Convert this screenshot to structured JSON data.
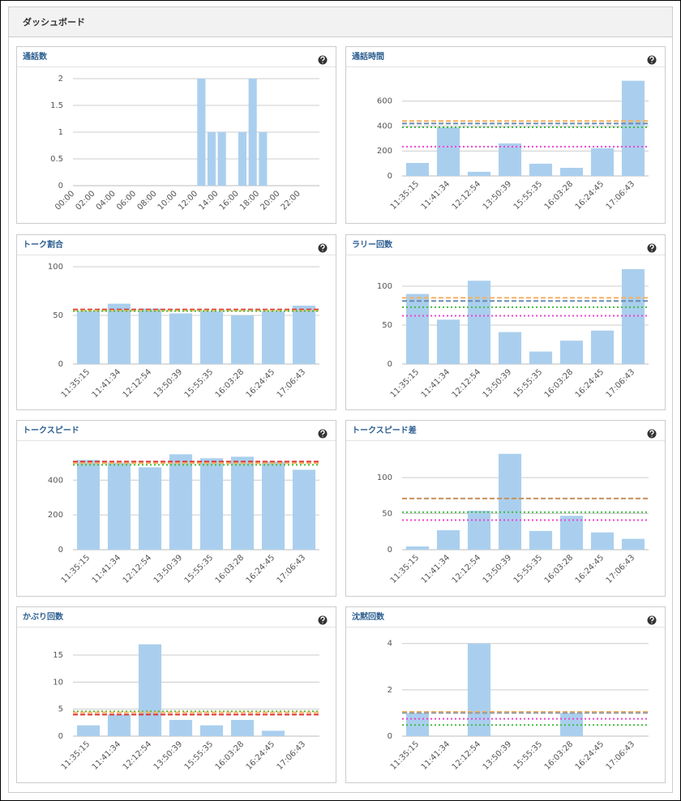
{
  "header": {
    "title": "ダッシュボード"
  },
  "chart_data": [
    {
      "type": "bar",
      "title": "通話数",
      "color": "#aacfee",
      "categories": [
        "00:00",
        null,
        "02:00",
        null,
        "04:00",
        null,
        "06:00",
        null,
        "08:00",
        null,
        "10:00",
        null,
        "12:00",
        null,
        "14:00",
        null,
        "16:00",
        null,
        "18:00",
        null,
        "20:00",
        null,
        "22:00",
        null
      ],
      "values": [
        0,
        0,
        0,
        0,
        0,
        0,
        0,
        0,
        0,
        0,
        0,
        0,
        2,
        1,
        1,
        0,
        1,
        2,
        1,
        0,
        0,
        0,
        0,
        0
      ],
      "ylim": [
        0,
        2
      ],
      "yticks": [
        0,
        0.5,
        1,
        1.5,
        2
      ],
      "grid": true,
      "reference_lines": []
    },
    {
      "type": "bar",
      "title": "通話時間",
      "color": "#aacfee",
      "categories": [
        "11:35:15",
        "11:41:34",
        "12:12:54",
        "13:50:39",
        "15:55:35",
        "16:03:28",
        "16:24:45",
        "17:06:43"
      ],
      "values": [
        104,
        390,
        33,
        261,
        98,
        65,
        222,
        763
      ],
      "ylim": [
        0,
        780
      ],
      "yticks": [
        0,
        200,
        400,
        600
      ],
      "grid": true,
      "reference_lines": [
        {
          "value": 440,
          "color": "#f5b060",
          "style": "dashed"
        },
        {
          "value": 420,
          "color": "#6a8caf",
          "style": "dashed"
        },
        {
          "value": 390,
          "color": "#44bb44",
          "style": "dotted"
        },
        {
          "value": 235,
          "color": "#ee44cc",
          "style": "dotted"
        }
      ]
    },
    {
      "type": "bar",
      "title": "トーク割合",
      "color": "#aacfee",
      "categories": [
        "11:35:15",
        "11:41:34",
        "12:12:54",
        "13:50:39",
        "15:55:35",
        "16:03:28",
        "16:24:45",
        "17:06:43"
      ],
      "values": [
        54,
        62,
        57,
        52,
        54,
        50,
        54,
        60
      ],
      "ylim": [
        0,
        100
      ],
      "yticks": [
        0,
        50,
        100
      ],
      "grid": true,
      "reference_lines": [
        {
          "value": 56,
          "color": "#dd3333",
          "style": "dashed"
        },
        {
          "value": 55,
          "color": "#f5b060",
          "style": "dashed"
        },
        {
          "value": 54.5,
          "color": "#44bb44",
          "style": "dotted"
        }
      ]
    },
    {
      "type": "bar",
      "title": "ラリー回数",
      "color": "#aacfee",
      "categories": [
        "11:35:15",
        "11:41:34",
        "12:12:54",
        "13:50:39",
        "15:55:35",
        "16:03:28",
        "16:24:45",
        "17:06:43"
      ],
      "values": [
        90,
        57,
        107,
        41,
        16,
        30,
        43,
        122
      ],
      "ylim": [
        0,
        125
      ],
      "yticks": [
        0,
        50,
        100
      ],
      "grid": true,
      "reference_lines": [
        {
          "value": 85,
          "color": "#f5b060",
          "style": "dashed"
        },
        {
          "value": 81,
          "color": "#6a8caf",
          "style": "dashed"
        },
        {
          "value": 73,
          "color": "#44bb44",
          "style": "dotted"
        },
        {
          "value": 62,
          "color": "#ee44cc",
          "style": "dotted"
        }
      ]
    },
    {
      "type": "bar",
      "title": "トークスピード",
      "color": "#aacfee",
      "categories": [
        "11:35:15",
        "11:41:34",
        "12:12:54",
        "13:50:39",
        "15:55:35",
        "16:03:28",
        "16:24:45",
        "17:06:43"
      ],
      "values": [
        516,
        502,
        474,
        549,
        526,
        535,
        507,
        460
      ],
      "ylim": [
        0,
        560
      ],
      "yticks": [
        0,
        200,
        400
      ],
      "grid": true,
      "reference_lines": [
        {
          "value": 507,
          "color": "#dd3333",
          "style": "dashed"
        },
        {
          "value": 498,
          "color": "#f5b060",
          "style": "dashed"
        },
        {
          "value": 488,
          "color": "#44bb44",
          "style": "dotted"
        }
      ]
    },
    {
      "type": "bar",
      "title": "トークスピード差",
      "color": "#aacfee",
      "categories": [
        "11:35:15",
        "11:41:34",
        "12:12:54",
        "13:50:39",
        "15:55:35",
        "16:03:28",
        "16:24:45",
        "17:06:43"
      ],
      "values": [
        4.5,
        27,
        54,
        133,
        26,
        47,
        24,
        15
      ],
      "ylim": [
        0,
        135
      ],
      "yticks": [
        0,
        50,
        100
      ],
      "grid": true,
      "reference_lines": [
        {
          "value": 71,
          "color": "#c8905a",
          "style": "dashed"
        },
        {
          "value": 52,
          "color": "#44bb44",
          "style": "dotted"
        },
        {
          "value": 41,
          "color": "#ee44cc",
          "style": "dotted"
        }
      ]
    },
    {
      "type": "bar",
      "title": "かぶり回数",
      "color": "#aacfee",
      "categories": [
        "11:35:15",
        "11:41:34",
        "12:12:54",
        "13:50:39",
        "15:55:35",
        "16:03:28",
        "16:24:45",
        "17:06:43"
      ],
      "values": [
        2,
        4,
        17,
        3,
        2,
        3,
        1,
        0
      ],
      "ylim": [
        0,
        18
      ],
      "yticks": [
        0,
        5,
        10,
        15
      ],
      "grid": true,
      "reference_lines": [
        {
          "value": 4.6,
          "color": "#44bb44",
          "style": "dotted"
        },
        {
          "value": 4.4,
          "color": "#f5b060",
          "style": "dashed"
        },
        {
          "value": 4,
          "color": "#dd3333",
          "style": "dashed"
        }
      ]
    },
    {
      "type": "bar",
      "title": "沈黙回数",
      "color": "#aacfee",
      "categories": [
        "11:35:15",
        "11:41:34",
        "12:12:54",
        "13:50:39",
        "15:55:35",
        "16:03:28",
        "16:24:45",
        "17:06:43"
      ],
      "values": [
        1,
        0,
        4,
        0,
        0,
        1,
        0,
        0
      ],
      "ylim": [
        0,
        4.2
      ],
      "yticks": [
        0,
        2,
        4
      ],
      "grid": true,
      "reference_lines": [
        {
          "value": 1.05,
          "color": "#f5b060",
          "style": "dashed"
        },
        {
          "value": 1,
          "color": "#999999",
          "style": "dashed"
        },
        {
          "value": 0.75,
          "color": "#ee44cc",
          "style": "dotted"
        },
        {
          "value": 0.48,
          "color": "#44bb44",
          "style": "dotted"
        }
      ]
    }
  ]
}
